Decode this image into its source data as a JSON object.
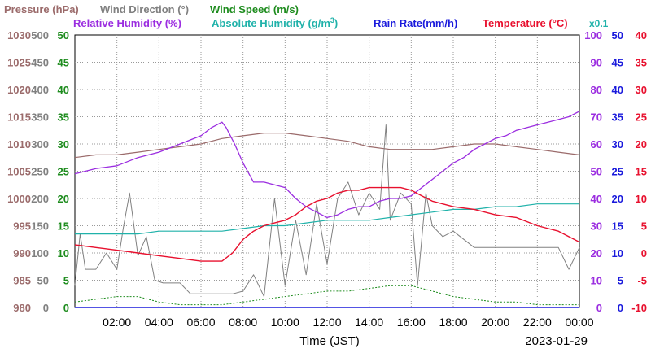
{
  "chart_data": {
    "type": "line",
    "date_label": "2023-01-29",
    "xlabel": "Time (JST)",
    "x_ticks": [
      "02:00",
      "04:00",
      "06:00",
      "08:00",
      "10:00",
      "12:00",
      "14:00",
      "16:00",
      "18:00",
      "20:00",
      "22:00",
      "00:00"
    ],
    "x_range_hours": [
      0,
      24
    ],
    "grid": true,
    "legend_placement": "top",
    "axes": [
      {
        "id": "pressure",
        "title": "Pressure (hPa)",
        "color": "#9b6b6b",
        "range": [
          980,
          1030
        ],
        "ticks": [
          "980",
          "985",
          "990",
          "995",
          "1000",
          "1005",
          "1010",
          "1015",
          "1020",
          "1025",
          "1030"
        ]
      },
      {
        "id": "wind_direction",
        "title": "Wind Direction (°)",
        "color": "#808080",
        "range": [
          0,
          500
        ],
        "ticks": [
          "0",
          "50",
          "100",
          "150",
          "200",
          "250",
          "300",
          "350",
          "400",
          "450",
          "500"
        ]
      },
      {
        "id": "wind_speed",
        "title": "Wind Speed (m/s)",
        "color": "#1e8c1e",
        "range": [
          0,
          50
        ],
        "ticks": [
          "0",
          "5",
          "10",
          "15",
          "20",
          "25",
          "30",
          "35",
          "40",
          "45",
          "50"
        ]
      },
      {
        "id": "humidity",
        "title": "Relative Humidity (%)",
        "color": "#9b2de0",
        "range": [
          0,
          100
        ],
        "ticks": [
          "0",
          "10",
          "20",
          "30",
          "40",
          "50",
          "60",
          "70",
          "80",
          "90",
          "100"
        ]
      },
      {
        "id": "rain_rate",
        "title": "Rain Rate(mm/h)",
        "color": "#1a1adc",
        "range": [
          0,
          50
        ],
        "ticks": [
          "0",
          "5",
          "10",
          "15",
          "20",
          "25",
          "30",
          "35",
          "40",
          "45",
          "50"
        ]
      },
      {
        "id": "temperature",
        "title": "Temperature (°C)",
        "color": "#e8102e",
        "range": [
          -10,
          40
        ],
        "ticks": [
          "-10",
          "-5",
          "0",
          "5",
          "10",
          "15",
          "20",
          "25",
          "30",
          "35",
          "40"
        ]
      }
    ],
    "abs_humidity_title": "Absolute Humidity (g/m",
    "abs_humidity_sup": "3",
    "abs_humidity_close": ")",
    "abs_humidity_scale": "x0.1",
    "abs_humidity_color": "#20b2aa",
    "series": [
      {
        "name": "Pressure (hPa)",
        "axis": "pressure",
        "x": [
          0,
          1,
          2,
          3,
          4,
          5,
          6,
          7,
          8,
          9,
          10,
          11,
          12,
          13,
          14,
          15,
          16,
          17,
          18,
          19,
          20,
          21,
          22,
          23,
          24
        ],
        "y": [
          1007.5,
          1008,
          1008,
          1008.5,
          1009,
          1009.5,
          1010,
          1011,
          1011.5,
          1012,
          1012,
          1011.5,
          1011,
          1010.5,
          1009.5,
          1009,
          1009,
          1009,
          1009.5,
          1010,
          1010,
          1009.5,
          1009,
          1008.5,
          1008
        ]
      },
      {
        "name": "Wind Direction (°)",
        "axis": "wind_direction",
        "x": [
          0,
          0.25,
          0.5,
          1,
          1.5,
          2,
          2.3,
          2.6,
          3,
          3.4,
          3.8,
          4.2,
          4.6,
          5,
          5.5,
          6,
          6.5,
          7,
          7.5,
          8,
          8.5,
          9,
          9.5,
          10,
          10.5,
          11,
          11.5,
          12,
          12.5,
          13,
          13.5,
          14,
          14.5,
          14.8,
          15,
          15.5,
          16,
          16.3,
          16.7,
          17,
          17.5,
          18,
          19,
          20,
          21,
          22,
          23,
          23.5,
          24
        ],
        "y": [
          40,
          135,
          70,
          70,
          100,
          70,
          145,
          210,
          95,
          130,
          50,
          45,
          45,
          45,
          25,
          25,
          25,
          25,
          25,
          30,
          60,
          20,
          200,
          40,
          160,
          60,
          190,
          80,
          200,
          230,
          170,
          210,
          180,
          335,
          160,
          210,
          190,
          40,
          210,
          150,
          130,
          140,
          110,
          110,
          110,
          110,
          110,
          70,
          110
        ]
      },
      {
        "name": "Wind Speed (m/s)",
        "axis": "wind_speed",
        "x": [
          0,
          1,
          2,
          3,
          4,
          5,
          6,
          7,
          8,
          9,
          10,
          11,
          12,
          13,
          14,
          15,
          16,
          17,
          18,
          19,
          20,
          21,
          22,
          23,
          24
        ],
        "y": [
          1,
          1.5,
          2,
          2,
          1,
          0.5,
          0.5,
          0.5,
          1,
          1.5,
          2,
          2.5,
          3,
          3,
          3.5,
          4,
          4,
          3,
          2,
          1.5,
          1,
          1,
          0.5,
          0.5,
          0.5
        ]
      },
      {
        "name": "Relative Humidity (%)",
        "axis": "humidity",
        "x": [
          0,
          1,
          2,
          3,
          4,
          5,
          6,
          6.5,
          7,
          7.2,
          7.6,
          8,
          8.5,
          9,
          9.5,
          10,
          10.5,
          11,
          11.5,
          12,
          12.5,
          13,
          13.5,
          14,
          14.5,
          15,
          15.5,
          16,
          16.5,
          17,
          17.5,
          18,
          18.5,
          19,
          19.5,
          20,
          20.5,
          21,
          21.5,
          22,
          22.5,
          23,
          23.5,
          24
        ],
        "y": [
          49,
          51,
          52,
          55,
          57,
          60,
          63,
          66,
          68,
          66,
          60,
          53,
          46,
          46,
          45,
          44,
          40,
          37,
          35,
          33,
          34,
          36,
          37,
          37,
          39,
          40,
          40,
          41,
          44,
          47,
          50,
          53,
          55,
          58,
          60,
          62,
          63,
          65,
          66,
          67,
          68,
          69,
          70,
          72
        ]
      },
      {
        "name": "Absolute Humidity",
        "axis": "rain_rate",
        "x": [
          0,
          1,
          2,
          3,
          4,
          5,
          6,
          7,
          8,
          9,
          10,
          11,
          12,
          13,
          14,
          15,
          16,
          17,
          18,
          19,
          20,
          21,
          22,
          23,
          24
        ],
        "y": [
          13.5,
          13.5,
          13.5,
          13.5,
          14,
          14,
          14,
          14,
          14.5,
          15,
          15,
          15.5,
          16,
          16,
          16,
          16.5,
          17,
          17.5,
          18,
          18,
          18.5,
          18.5,
          19,
          19,
          19
        ]
      },
      {
        "name": "Rain Rate(mm/h)",
        "axis": "rain_rate",
        "x": [
          0,
          24
        ],
        "y": [
          0,
          0
        ]
      },
      {
        "name": "Temperature (°C)",
        "axis": "temperature",
        "x": [
          0,
          1,
          2,
          3,
          4,
          5,
          6,
          7,
          7.5,
          8,
          8.5,
          9,
          9.5,
          10,
          10.5,
          11,
          11.5,
          12,
          12.5,
          13,
          13.5,
          14,
          14.5,
          15,
          15.5,
          16,
          16.5,
          17,
          17.5,
          18,
          19,
          20,
          21,
          22,
          23,
          24
        ],
        "y": [
          1.5,
          1,
          0.5,
          0,
          -0.5,
          -1,
          -1.5,
          -1.5,
          0,
          2.5,
          4,
          5,
          5.5,
          6,
          7,
          8.5,
          9.5,
          10,
          11,
          11.5,
          11.5,
          12,
          12,
          12,
          12,
          11.5,
          10.5,
          9.5,
          9,
          8.5,
          8,
          7,
          6.5,
          5,
          4,
          2
        ]
      }
    ]
  }
}
